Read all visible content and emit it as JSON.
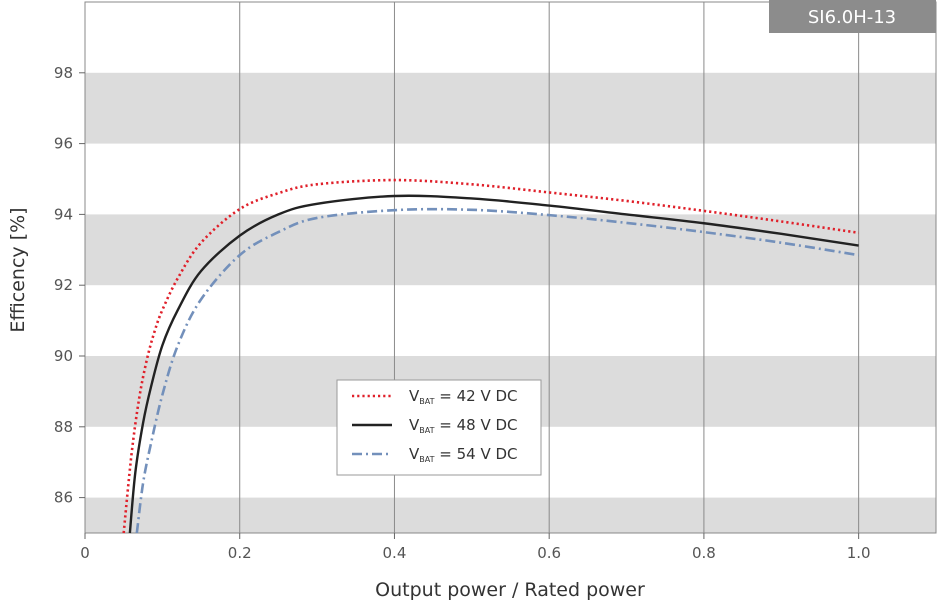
{
  "chart_data": {
    "type": "line",
    "badge": "SI6.0H-13",
    "xlabel": "Output power / Rated power",
    "ylabel": "Efficency [%]",
    "xlim": [
      0,
      1.1
    ],
    "ylim": [
      85,
      100
    ],
    "xticks": [
      "0",
      "0.2",
      "0.4",
      "0.6",
      "0.8",
      "1.0"
    ],
    "yticks": [
      "86",
      "88",
      "90",
      "92",
      "94",
      "96",
      "98"
    ],
    "grid": "vertical lines with alternating grey horizontal bands",
    "legend_position": "center-left",
    "series": [
      {
        "name_prefix": "V",
        "name_sub": "BAT",
        "name_rest": " = 42 V DC",
        "color": "#e0202a",
        "style": "dotted",
        "x": [
          0.05,
          0.06,
          0.07,
          0.08,
          0.09,
          0.1,
          0.12,
          0.15,
          0.2,
          0.25,
          0.3,
          0.4,
          0.5,
          0.6,
          0.7,
          0.8,
          0.9,
          1.0
        ],
        "y": [
          85.0,
          87.2,
          88.8,
          89.9,
          90.7,
          91.3,
          92.2,
          93.2,
          94.15,
          94.6,
          94.85,
          94.97,
          94.85,
          94.62,
          94.38,
          94.1,
          93.8,
          93.48
        ]
      },
      {
        "name_prefix": "V",
        "name_sub": "BAT",
        "name_rest": " = 48 V DC",
        "color": "#222222",
        "style": "solid",
        "x": [
          0.058,
          0.065,
          0.075,
          0.085,
          0.1,
          0.12,
          0.15,
          0.2,
          0.25,
          0.3,
          0.4,
          0.5,
          0.6,
          0.7,
          0.8,
          0.9,
          1.0
        ],
        "y": [
          85.0,
          86.7,
          88.1,
          89.1,
          90.3,
          91.3,
          92.4,
          93.4,
          94.0,
          94.3,
          94.52,
          94.45,
          94.25,
          94.0,
          93.75,
          93.45,
          93.12
        ]
      },
      {
        "name_prefix": "V",
        "name_sub": "BAT",
        "name_rest": " = 54 V DC",
        "color": "#7390bb",
        "style": "dashdot",
        "x": [
          0.067,
          0.075,
          0.085,
          0.1,
          0.12,
          0.15,
          0.2,
          0.25,
          0.3,
          0.4,
          0.5,
          0.6,
          0.7,
          0.8,
          0.9,
          1.0
        ],
        "y": [
          85.0,
          86.4,
          87.5,
          88.9,
          90.3,
          91.6,
          92.85,
          93.5,
          93.9,
          94.12,
          94.13,
          93.98,
          93.76,
          93.5,
          93.2,
          92.85
        ]
      }
    ]
  }
}
